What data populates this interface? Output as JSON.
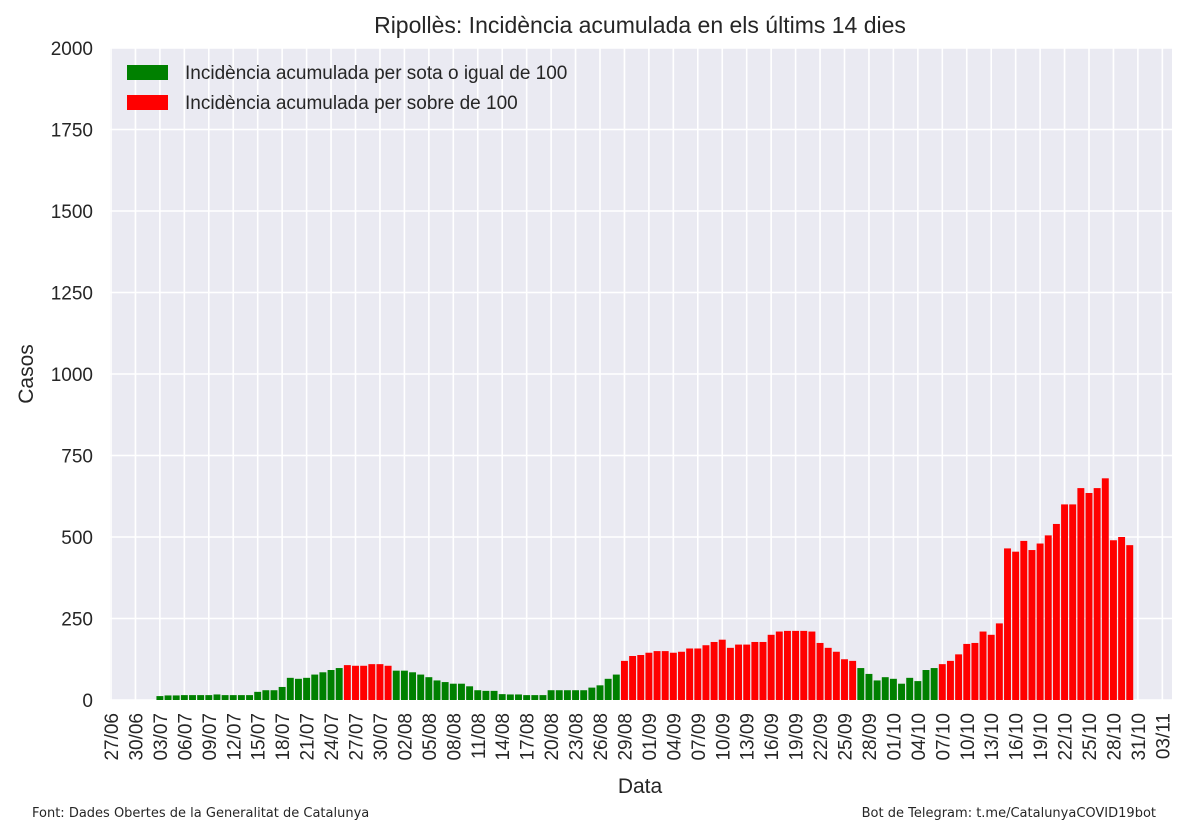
{
  "chart_data": {
    "type": "bar",
    "title": "Ripollès: Incidència acumulada en els últims 14 dies",
    "xlabel": "Data",
    "ylabel": "Casos",
    "ylim": [
      0,
      2000
    ],
    "yticks": [
      0,
      250,
      500,
      750,
      1000,
      1250,
      1500,
      1750,
      2000
    ],
    "xtick_labels": [
      "27/06",
      "30/06",
      "03/07",
      "06/07",
      "09/07",
      "12/07",
      "15/07",
      "18/07",
      "21/07",
      "24/07",
      "27/07",
      "30/07",
      "02/08",
      "05/08",
      "08/08",
      "11/08",
      "14/08",
      "17/08",
      "20/08",
      "23/08",
      "26/08",
      "29/08",
      "01/09",
      "04/09",
      "07/09",
      "10/09",
      "13/09",
      "16/09",
      "19/09",
      "22/09",
      "25/09",
      "28/09",
      "01/10",
      "04/10",
      "07/10",
      "10/10",
      "13/10",
      "16/10",
      "19/10",
      "22/10",
      "25/10",
      "28/10",
      "31/10",
      "03/11"
    ],
    "first_date": "27/06",
    "threshold": 100,
    "legend_position": "top-left",
    "grid": true,
    "series": [
      {
        "name": "Incidència acumulada per sota o igual de 100",
        "color": "#008000"
      },
      {
        "name": "Incidència acumulada per sobre de 100",
        "color": "#ff0000"
      }
    ],
    "values": [
      0,
      0,
      0,
      0,
      0,
      0,
      12,
      14,
      14,
      15,
      15,
      15,
      15,
      17,
      15,
      15,
      15,
      15,
      25,
      30,
      30,
      40,
      68,
      65,
      68,
      78,
      85,
      92,
      98,
      107,
      105,
      105,
      110,
      110,
      105,
      90,
      90,
      85,
      78,
      70,
      60,
      55,
      50,
      50,
      42,
      30,
      28,
      28,
      18,
      17,
      17,
      15,
      15,
      15,
      30,
      30,
      30,
      30,
      30,
      38,
      45,
      65,
      78,
      120,
      135,
      138,
      145,
      150,
      150,
      145,
      148,
      158,
      158,
      168,
      178,
      185,
      160,
      170,
      170,
      178,
      178,
      200,
      210,
      212,
      212,
      212,
      210,
      175,
      160,
      148,
      125,
      120,
      98,
      80,
      60,
      70,
      65,
      50,
      68,
      58,
      92,
      98,
      110,
      120,
      140,
      172,
      175,
      210,
      200,
      235,
      465,
      455,
      488,
      460,
      480,
      505,
      540,
      600,
      600,
      650,
      635,
      650,
      680,
      490,
      500,
      475
    ]
  },
  "footer": {
    "source": "Font: Dades Obertes de la Generalitat de Catalunya",
    "bot": "Bot de Telegram: t.me/CatalunyaCOVID19bot"
  }
}
